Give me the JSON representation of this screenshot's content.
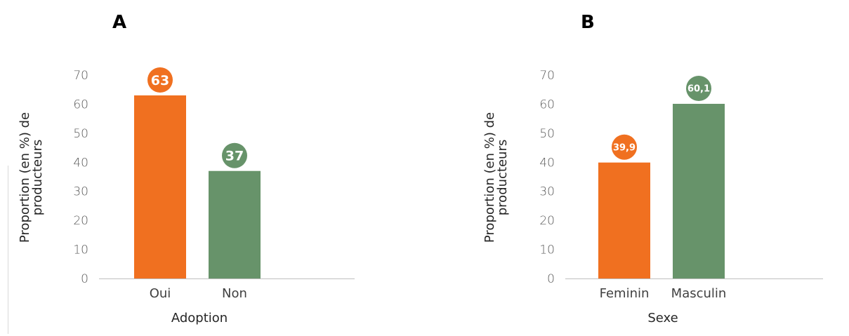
{
  "colors": {
    "orange": "#F07020",
    "green": "#67936A",
    "axis": "#bfbfbf"
  },
  "chart_data": [
    {
      "panel": "A",
      "type": "bar",
      "categories": [
        "Oui",
        "Non"
      ],
      "values": [
        63,
        37
      ],
      "data_labels": [
        "63",
        "37"
      ],
      "bar_colors": [
        "#F07020",
        "#67936A"
      ],
      "xlabel": "Adoption",
      "ylabel": [
        "Proportion (en %) de",
        "producteurs"
      ],
      "ylim": [
        0,
        70
      ],
      "yticks": [
        "0",
        "10",
        "20",
        "30",
        "40",
        "50",
        "60",
        "70"
      ],
      "grid": false,
      "legend": "none"
    },
    {
      "panel": "B",
      "type": "bar",
      "categories": [
        "Feminin",
        "Masculin"
      ],
      "values": [
        39.9,
        60.1
      ],
      "data_labels": [
        "39,9",
        "60,1"
      ],
      "bar_colors": [
        "#F07020",
        "#67936A"
      ],
      "xlabel": "Sexe",
      "ylabel": [
        "Proportion (en %) de",
        "producteurs"
      ],
      "ylim": [
        0,
        70
      ],
      "yticks": [
        "0",
        "10",
        "20",
        "30",
        "40",
        "50",
        "60",
        "70"
      ],
      "grid": false,
      "legend": "none"
    }
  ]
}
